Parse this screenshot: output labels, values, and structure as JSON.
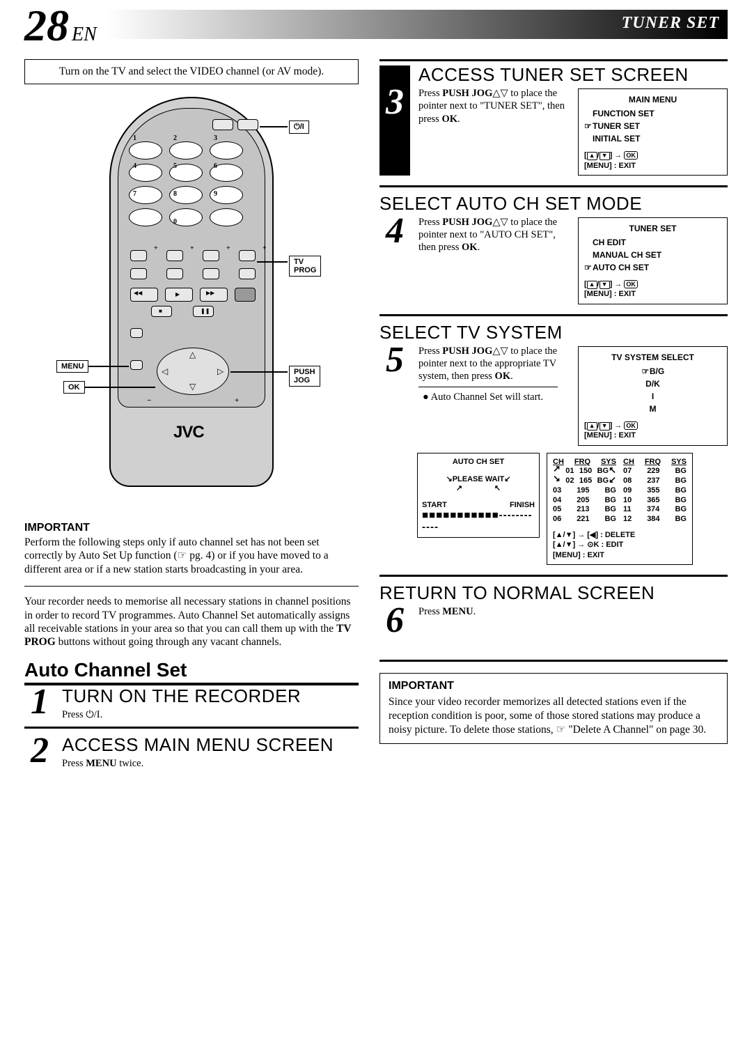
{
  "header": {
    "page_number": "28",
    "lang": "EN",
    "title": "TUNER SET"
  },
  "intro_box": "Turn on the TV and select the VIDEO channel (or AV mode).",
  "remote": {
    "brand": "JVC",
    "num_labels": {
      "r1": [
        "1",
        "2",
        "3"
      ],
      "r2": [
        "4",
        "5",
        "6"
      ],
      "r3": [
        "7",
        "8",
        "9"
      ],
      "r4": [
        "",
        "0",
        ""
      ],
      "r4_right": "⏵⏯"
    },
    "callouts": {
      "power": "⏻/I",
      "tv_prog": "TV PROG",
      "menu": "MENU",
      "ok": "OK",
      "push_jog": "PUSH JOG"
    }
  },
  "left_important": {
    "label": "IMPORTANT",
    "text": "Perform the following steps only if auto channel set has not been set correctly by Auto Set Up function (☞ pg. 4) or if you have moved to a different area or if a new station starts broadcasting in your area."
  },
  "left_body": "Your recorder needs to memorise all necessary stations in channel positions in order to record TV programmes. Auto Channel Set automatically assigns all receivable stations in your area so that you can call them up with the <b>TV PROG</b> buttons without going through any vacant channels.",
  "section_header": "Auto Channel Set",
  "steps": {
    "1": {
      "title": "TURN ON THE RECORDER",
      "text": "Press ⏻/I."
    },
    "2": {
      "title": "ACCESS MAIN MENU SCREEN",
      "text": "Press <b>MENU</b> twice."
    },
    "3": {
      "title": "ACCESS TUNER SET SCREEN",
      "text": "Press <b>PUSH JOG</b>△▽ to place the pointer next to \"TUNER SET\", then press <b>OK</b>.",
      "osd": {
        "title": "MAIN MENU",
        "items": [
          "FUNCTION SET",
          "TUNER SET",
          "INITIAL SET"
        ],
        "pointer_index": 1,
        "nav": "[▲/▼] → ⊙K\n[MENU] : EXIT"
      }
    },
    "4": {
      "title": "SELECT AUTO CH SET MODE",
      "text": "Press <b>PUSH JOG</b>△▽ to place the pointer next to \"AUTO CH SET\", then press <b>OK</b>.",
      "osd": {
        "title": "TUNER SET",
        "items": [
          "CH EDIT",
          "MANUAL CH SET",
          "AUTO CH SET"
        ],
        "pointer_index": 2,
        "nav": "[▲/▼] → ⊙K\n[MENU] : EXIT"
      }
    },
    "5": {
      "title": "SELECT TV SYSTEM",
      "text": "Press <b>PUSH JOG</b>△▽ to place the pointer next to the appropriate TV system, then press <b>OK</b>.",
      "bullet": "Auto Channel Set will start.",
      "osd": {
        "title": "TV SYSTEM SELECT",
        "items": [
          "B/G",
          "D/K",
          "I",
          "M"
        ],
        "pointer_index": 0,
        "nav": "[▲/▼] → ⊙K\n[MENU] : EXIT"
      },
      "auto_box": {
        "title": "AUTO CH SET",
        "status": "PLEASE WAIT",
        "start": "START",
        "finish": "FINISH",
        "progress": "■■■■■■■■■■■------------"
      },
      "ch_table": {
        "headers": [
          "CH",
          "FRQ",
          "SYS"
        ],
        "left_rows": [
          [
            "01",
            "150",
            "BG"
          ],
          [
            "02",
            "165",
            "BG"
          ],
          [
            "03",
            "195",
            "BG"
          ],
          [
            "04",
            "205",
            "BG"
          ],
          [
            "05",
            "213",
            "BG"
          ],
          [
            "06",
            "221",
            "BG"
          ]
        ],
        "right_rows": [
          [
            "07",
            "229",
            "BG"
          ],
          [
            "08",
            "237",
            "BG"
          ],
          [
            "09",
            "355",
            "BG"
          ],
          [
            "10",
            "365",
            "BG"
          ],
          [
            "11",
            "374",
            "BG"
          ],
          [
            "12",
            "384",
            "BG"
          ]
        ],
        "nav": "[▲/▼] → [◀] : DELETE\n[▲/▼] → ⊙K : EDIT\n[MENU] : EXIT"
      }
    },
    "6": {
      "title": "RETURN TO NORMAL SCREEN",
      "text": "Press <b>MENU</b>."
    }
  },
  "right_important": {
    "label": "IMPORTANT",
    "text": "Since your video recorder memorizes all detected stations even if the reception condition is poor, some of those stored stations may produce a noisy picture. To delete those stations, ☞ \"Delete A Channel\" on page 30."
  }
}
